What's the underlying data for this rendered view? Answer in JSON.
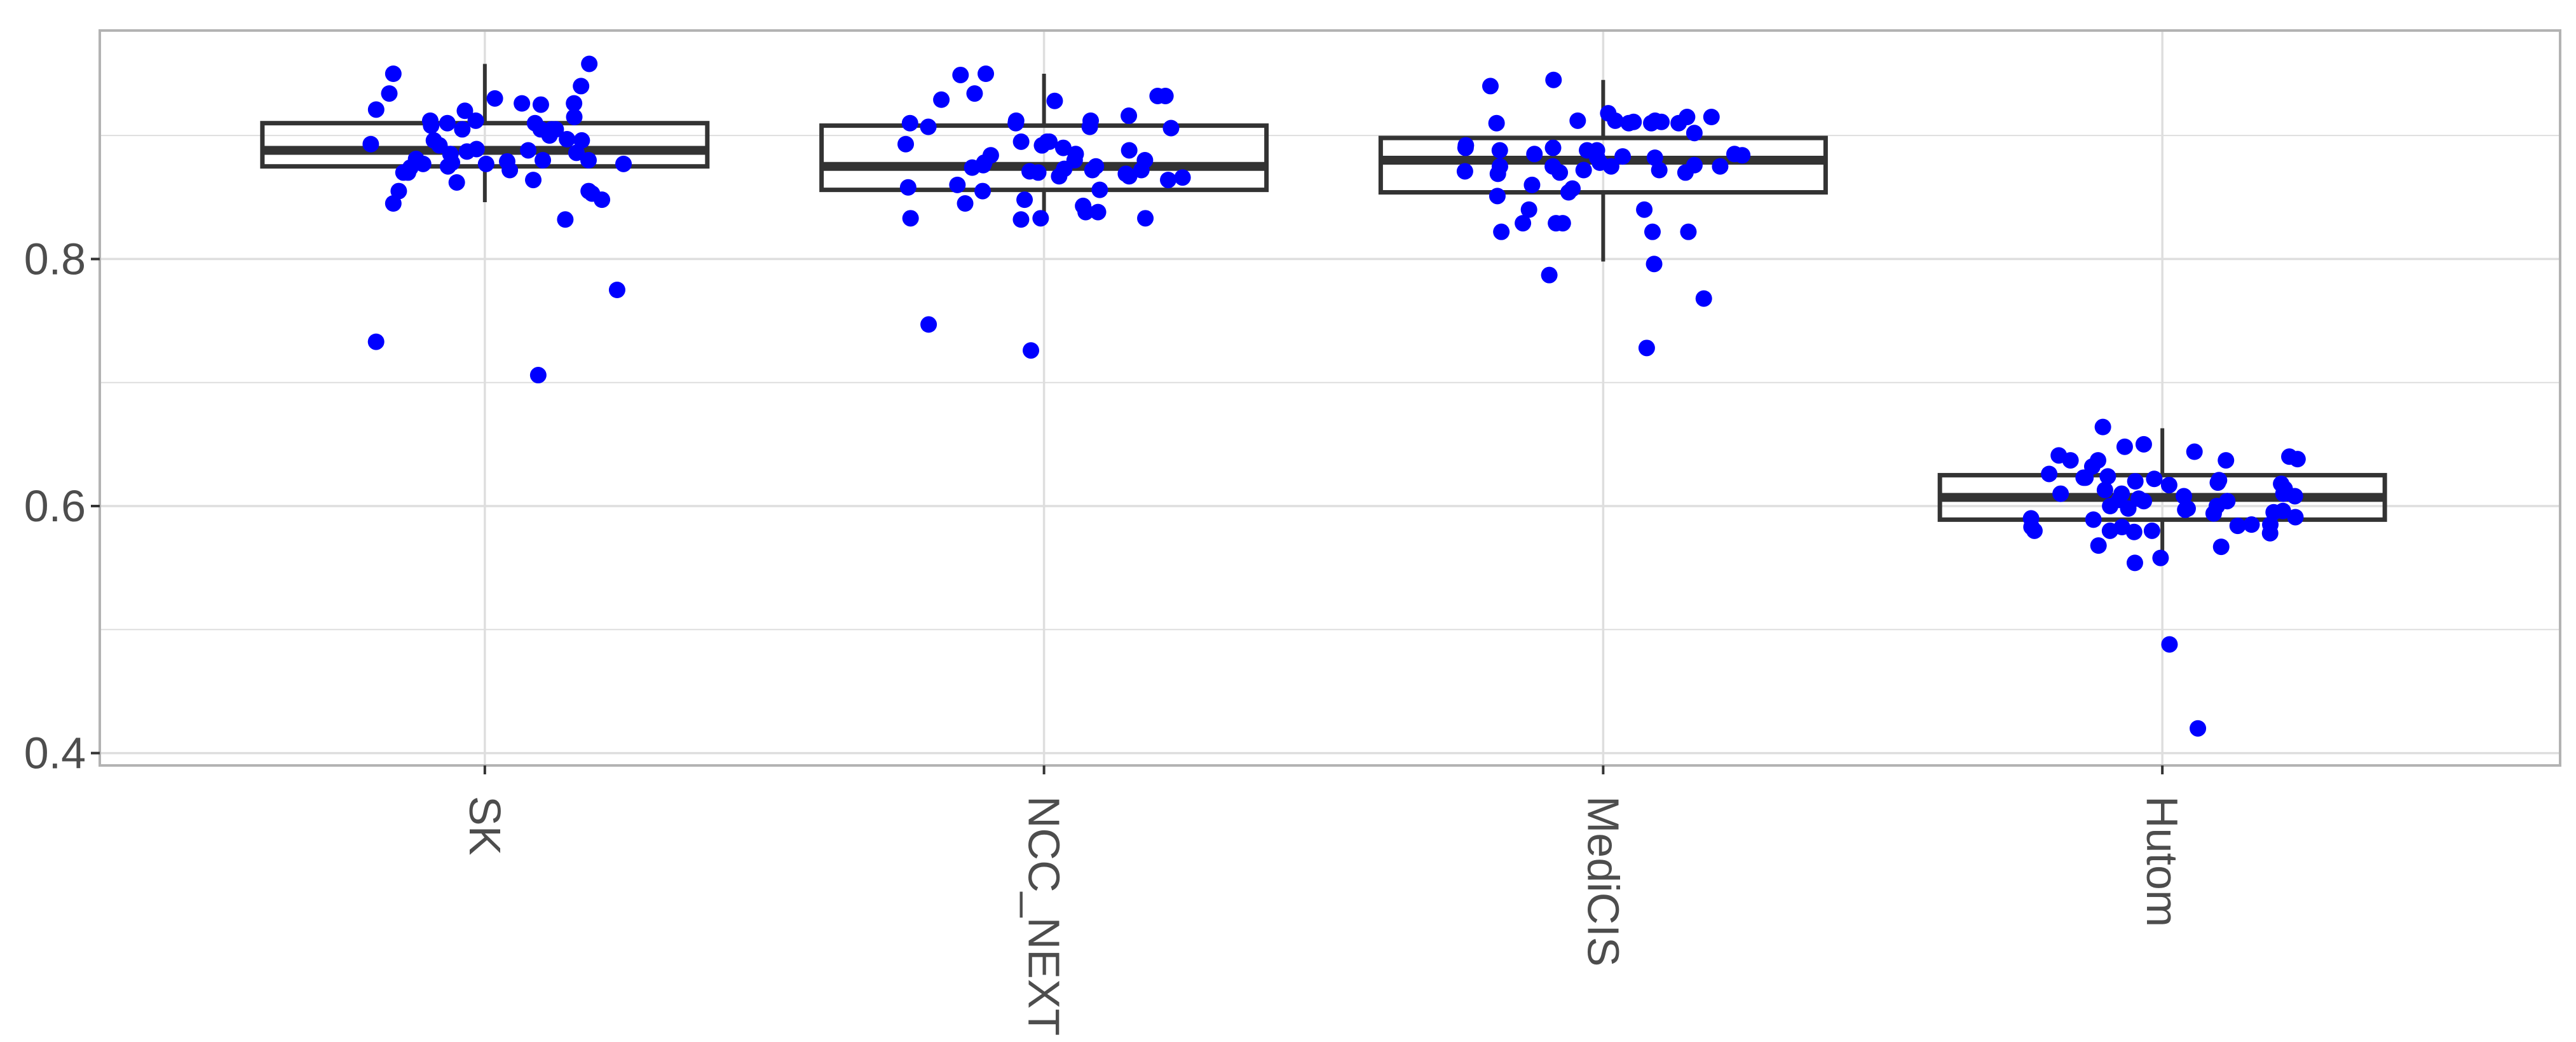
{
  "chart_data": {
    "type": "boxplot",
    "title": "",
    "xlabel": "",
    "ylabel": "",
    "categories": [
      "SK",
      "NCC_NEXT",
      "MediCIS",
      "Hutom"
    ],
    "ylim": [
      0.39,
      0.985
    ],
    "y_ticks": [
      0.4,
      0.6,
      0.8
    ],
    "y_tick_labels": [
      "0.4",
      "0.6",
      "0.8"
    ],
    "grid": true,
    "legend": "none",
    "colors": {
      "points": "#0000ff",
      "box": "#333333",
      "grid": "#dedede",
      "panel_border": "#b3b3b3",
      "text": "#4d4d4d"
    },
    "boxes": [
      {
        "category": "SK",
        "q1": 0.875,
        "median": 0.888,
        "q3": 0.91,
        "whisker_low": 0.846,
        "whisker_high": 0.958
      },
      {
        "category": "NCC_NEXT",
        "q1": 0.856,
        "median": 0.875,
        "q3": 0.908,
        "whisker_low": 0.83,
        "whisker_high": 0.95
      },
      {
        "category": "MediCIS",
        "q1": 0.854,
        "median": 0.88,
        "q3": 0.898,
        "whisker_low": 0.798,
        "whisker_high": 0.945
      },
      {
        "category": "Hutom",
        "q1": 0.589,
        "median": 0.607,
        "q3": 0.625,
        "whisker_low": 0.556,
        "whisker_high": 0.663
      }
    ],
    "points": [
      {
        "category": "SK",
        "values": [
          0.888,
          0.912,
          0.926,
          0.877,
          0.91,
          0.864,
          0.845,
          0.853,
          0.88,
          0.886,
          0.905,
          0.892,
          0.897,
          0.855,
          0.879,
          0.874,
          0.87,
          0.832,
          0.855,
          0.94,
          0.921,
          0.889,
          0.9,
          0.91,
          0.877,
          0.875,
          0.848,
          0.88,
          0.905,
          0.92,
          0.915,
          0.95,
          0.934,
          0.896,
          0.885,
          0.877,
          0.775,
          0.912,
          0.905,
          0.87,
          0.887,
          0.958,
          0.926,
          0.908,
          0.93,
          0.896,
          0.925,
          0.733,
          0.872,
          0.893,
          0.706,
          0.862,
          0.905,
          0.881,
          0.878
        ]
      },
      {
        "category": "NCC_NEXT",
        "values": [
          0.912,
          0.895,
          0.864,
          0.848,
          0.833,
          0.934,
          0.929,
          0.912,
          0.893,
          0.878,
          0.855,
          0.832,
          0.845,
          0.916,
          0.87,
          0.928,
          0.872,
          0.885,
          0.856,
          0.91,
          0.867,
          0.871,
          0.895,
          0.907,
          0.95,
          0.833,
          0.906,
          0.949,
          0.895,
          0.932,
          0.88,
          0.858,
          0.843,
          0.838,
          0.91,
          0.888,
          0.875,
          0.876,
          0.869,
          0.866,
          0.892,
          0.86,
          0.89,
          0.872,
          0.833,
          0.873,
          0.838,
          0.907,
          0.932,
          0.747,
          0.874,
          0.726,
          0.867,
          0.884,
          0.88
        ]
      },
      {
        "category": "MediCIS",
        "values": [
          0.84,
          0.822,
          0.912,
          0.872,
          0.892,
          0.945,
          0.911,
          0.876,
          0.87,
          0.884,
          0.91,
          0.768,
          0.787,
          0.871,
          0.885,
          0.875,
          0.84,
          0.912,
          0.91,
          0.878,
          0.728,
          0.875,
          0.796,
          0.888,
          0.883,
          0.829,
          0.822,
          0.888,
          0.89,
          0.882,
          0.829,
          0.854,
          0.86,
          0.829,
          0.91,
          0.912,
          0.885,
          0.872,
          0.918,
          0.902,
          0.915,
          0.875,
          0.888,
          0.882,
          0.822,
          0.915,
          0.87,
          0.89,
          0.911,
          0.857,
          0.94,
          0.875,
          0.851,
          0.869,
          0.91
        ]
      },
      {
        "category": "Hutom",
        "values": [
          0.567,
          0.621,
          0.61,
          0.623,
          0.622,
          0.618,
          0.6,
          0.626,
          0.585,
          0.583,
          0.638,
          0.623,
          0.632,
          0.597,
          0.608,
          0.589,
          0.604,
          0.624,
          0.585,
          0.664,
          0.617,
          0.637,
          0.488,
          0.6,
          0.594,
          0.568,
          0.61,
          0.584,
          0.59,
          0.641,
          0.558,
          0.58,
          0.648,
          0.619,
          0.42,
          0.608,
          0.605,
          0.604,
          0.65,
          0.598,
          0.58,
          0.61,
          0.596,
          0.644,
          0.554,
          0.578,
          0.637,
          0.58,
          0.62,
          0.579,
          0.614,
          0.591,
          0.583,
          0.606,
          0.598,
          0.637,
          0.595,
          0.613,
          0.64
        ]
      }
    ]
  }
}
